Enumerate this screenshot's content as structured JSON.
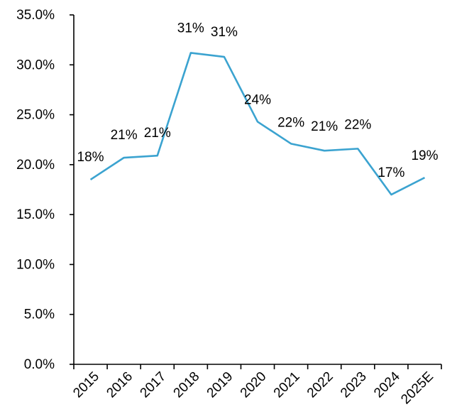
{
  "chart_data": {
    "type": "line",
    "title": "",
    "xlabel": "",
    "ylabel": "",
    "categories": [
      "2015",
      "2016",
      "2017",
      "2018",
      "2019",
      "2020",
      "2021",
      "2022",
      "2023",
      "2024",
      "2025E"
    ],
    "series": [
      {
        "name": "Series 1",
        "color": "#3BA3D0",
        "values": [
          18.5,
          20.7,
          20.9,
          31.2,
          30.8,
          24.3,
          22.1,
          21.4,
          21.6,
          17.0,
          18.7
        ],
        "labels": [
          "18%",
          "21%",
          "21%",
          "31%",
          "31%",
          "24%",
          "22%",
          "21%",
          "22%",
          "17%",
          "19%"
        ]
      }
    ],
    "ylim": [
      0,
      35
    ],
    "y_ticks": [
      0,
      5,
      10,
      15,
      20,
      25,
      30,
      35
    ],
    "y_tick_labels": [
      "0.0%",
      "5.0%",
      "10.0%",
      "15.0%",
      "20.0%",
      "25.0%",
      "30.0%",
      "35.0%"
    ],
    "grid": false,
    "legend": "none"
  }
}
